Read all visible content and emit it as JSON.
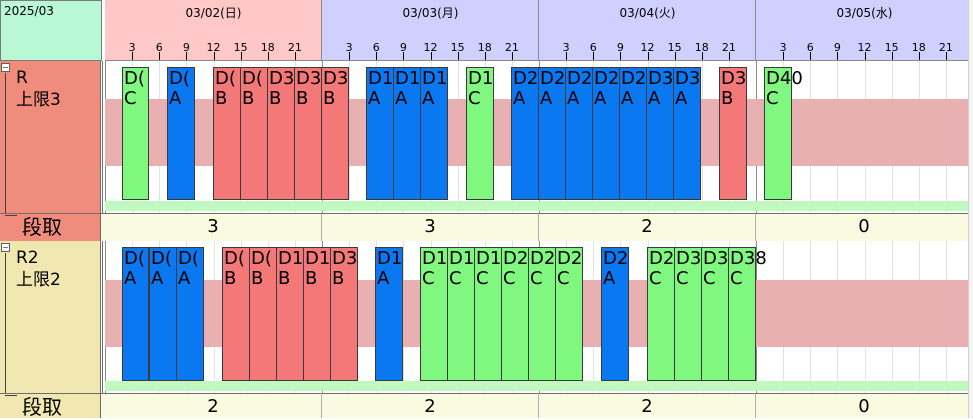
{
  "header": {
    "month_label": "2025/03",
    "days": [
      {
        "label": "03/02(日)",
        "color": "#ffc8c8"
      },
      {
        "label": "03/03(月)",
        "color": "#d0d0ff"
      },
      {
        "label": "03/04(火)",
        "color": "#d0d0ff"
      },
      {
        "label": "03/05(水)",
        "color": "#d0d0ff"
      }
    ],
    "hour_ticks": [
      "3",
      "6",
      "9",
      "12",
      "15",
      "18",
      "21"
    ]
  },
  "colors": {
    "A": "#0a78f0",
    "B": "#f57878",
    "C": "#80f880",
    "band": "#e8b0b0",
    "label_r": "#f08c7c",
    "label_r2": "#f0e8b0",
    "count_bg": "#fafae0",
    "green_strip": "#c0f8c0"
  },
  "resources": [
    {
      "name": "R",
      "limit_label": "上限3",
      "row_color": "label_r",
      "setup_label": "段取",
      "setup_counts": [
        "3",
        "3",
        "2",
        "0"
      ],
      "blocks": [
        {
          "id": "D(",
          "type": "C"
        },
        {
          "id": "D(",
          "type": "A"
        },
        {
          "id": "D(",
          "type": "B"
        },
        {
          "id": "D(",
          "type": "B"
        },
        {
          "id": "D3",
          "type": "B"
        },
        {
          "id": "D3",
          "type": "B"
        },
        {
          "id": "D3",
          "type": "B"
        },
        {
          "id": "D1",
          "type": "A"
        },
        {
          "id": "D1",
          "type": "A"
        },
        {
          "id": "D1",
          "type": "A"
        },
        {
          "id": "D1",
          "type": "C"
        },
        {
          "id": "D2",
          "type": "A"
        },
        {
          "id": "D2",
          "type": "A"
        },
        {
          "id": "D2",
          "type": "A"
        },
        {
          "id": "D2",
          "type": "A"
        },
        {
          "id": "D2",
          "type": "A"
        },
        {
          "id": "D3",
          "type": "A"
        },
        {
          "id": "D3",
          "type": "A"
        },
        {
          "id": "D3",
          "type": "B"
        },
        {
          "id": "D40",
          "type": "C"
        }
      ]
    },
    {
      "name": "R2",
      "limit_label": "上限2",
      "row_color": "label_r2",
      "setup_label": "段取",
      "setup_counts": [
        "2",
        "2",
        "2",
        "0"
      ],
      "blocks": [
        {
          "id": "D(",
          "type": "A"
        },
        {
          "id": "D(",
          "type": "A"
        },
        {
          "id": "D(",
          "type": "A"
        },
        {
          "id": "D(",
          "type": "B"
        },
        {
          "id": "D(",
          "type": "B"
        },
        {
          "id": "D1",
          "type": "B"
        },
        {
          "id": "D1",
          "type": "B"
        },
        {
          "id": "D3",
          "type": "B"
        },
        {
          "id": "D1",
          "type": "A"
        },
        {
          "id": "D1",
          "type": "C"
        },
        {
          "id": "D1",
          "type": "C"
        },
        {
          "id": "D1",
          "type": "C"
        },
        {
          "id": "D2",
          "type": "C"
        },
        {
          "id": "D2",
          "type": "C"
        },
        {
          "id": "D2",
          "type": "C"
        },
        {
          "id": "D2",
          "type": "A"
        },
        {
          "id": "D2",
          "type": "C"
        },
        {
          "id": "D3",
          "type": "C"
        },
        {
          "id": "D3",
          "type": "C"
        },
        {
          "id": "D38",
          "type": "C"
        }
      ]
    }
  ]
}
